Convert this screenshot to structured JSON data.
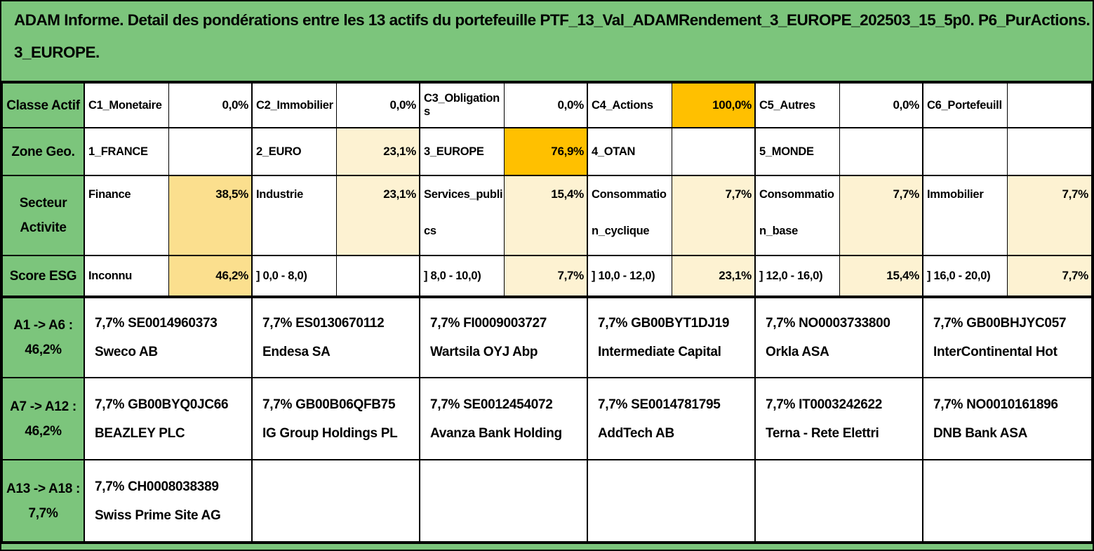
{
  "title": {
    "line1": "ADAM Informe. Detail des pondérations entre les 13 actifs du portefeuille PTF_13_Val_ADAMRendement_3_EUROPE_202503_15_5p0. P6_PurActions.",
    "line2": "3_EUROPE."
  },
  "colors": {
    "background_green": "#7CC57C",
    "highlight_orange": "#FFC000",
    "highlight_gold": "#FBDF8E",
    "highlight_cream": "#FDF2D2",
    "cell_white": "#FFFFFF",
    "border": "#000000"
  },
  "attribute_rows": [
    {
      "label_line1": "Classe Actif",
      "label_line2": "",
      "cells": [
        {
          "name": "C1_Monetaire",
          "value": "0,0%",
          "fill": "white"
        },
        {
          "name": "C2_Immobilier",
          "value": "0,0%",
          "fill": "white"
        },
        {
          "name": "C3_Obligations",
          "value": "0,0%",
          "fill": "white"
        },
        {
          "name": "C4_Actions",
          "value": "100,0%",
          "fill": "orange"
        },
        {
          "name": "C5_Autres",
          "value": "0,0%",
          "fill": "white"
        },
        {
          "name": "C6_Portefeuill",
          "value": "",
          "fill": "white"
        }
      ]
    },
    {
      "label_line1": "Zone Geo.",
      "label_line2": "",
      "cells": [
        {
          "name": "1_FRANCE",
          "value": "",
          "fill": "white"
        },
        {
          "name": "2_EURO",
          "value": "23,1%",
          "fill": "cream"
        },
        {
          "name": "3_EUROPE",
          "value": "76,9%",
          "fill": "orange"
        },
        {
          "name": "4_OTAN",
          "value": "",
          "fill": "white"
        },
        {
          "name": "5_MONDE",
          "value": "",
          "fill": "white"
        },
        {
          "name": "",
          "value": "",
          "fill": "white"
        }
      ]
    },
    {
      "label_line1": "Secteur",
      "label_line2": "Activite",
      "cells": [
        {
          "name": "Finance",
          "value": "38,5%",
          "fill": "gold"
        },
        {
          "name": "Industrie",
          "value": "23,1%",
          "fill": "cream"
        },
        {
          "name": "Services_publics",
          "value": "15,4%",
          "fill": "cream"
        },
        {
          "name": "Consommation_cyclique",
          "value": "7,7%",
          "fill": "cream"
        },
        {
          "name": "Consommation_base",
          "value": "7,7%",
          "fill": "cream"
        },
        {
          "name": "Immobilier",
          "value": "7,7%",
          "fill": "cream"
        }
      ]
    },
    {
      "label_line1": "Score ESG",
      "label_line2": "",
      "cells": [
        {
          "name": "Inconnu",
          "value": "46,2%",
          "fill": "gold"
        },
        {
          "name": "] 0,0 - 8,0)",
          "value": "",
          "fill": "white"
        },
        {
          "name": "] 8,0 - 10,0)",
          "value": "7,7%",
          "fill": "cream"
        },
        {
          "name": "] 10,0 - 12,0)",
          "value": "23,1%",
          "fill": "cream"
        },
        {
          "name": "] 12,0 - 16,0)",
          "value": "15,4%",
          "fill": "cream"
        },
        {
          "name": "] 16,0 - 20,0)",
          "value": "7,7%",
          "fill": "cream"
        }
      ]
    }
  ],
  "holding_rows": [
    {
      "label_line1": "A1 -> A6 :",
      "label_line2": "46,2%",
      "cells": [
        {
          "line1": "7,7% SE0014960373",
          "line2": "Sweco AB"
        },
        {
          "line1": "7,7% ES0130670112",
          "line2": "Endesa SA"
        },
        {
          "line1": "7,7% FI0009003727",
          "line2": "Wartsila OYJ Abp"
        },
        {
          "line1": "7,7% GB00BYT1DJ19",
          "line2": "Intermediate Capital"
        },
        {
          "line1": "7,7% NO0003733800",
          "line2": "Orkla ASA"
        },
        {
          "line1": "7,7% GB00BHJYC057",
          "line2": "InterContinental Hot"
        }
      ]
    },
    {
      "label_line1": "A7 -> A12 :",
      "label_line2": "46,2%",
      "cells": [
        {
          "line1": "7,7% GB00BYQ0JC66",
          "line2": "BEAZLEY PLC"
        },
        {
          "line1": "7,7% GB00B06QFB75",
          "line2": "IG Group Holdings PL"
        },
        {
          "line1": "7,7% SE0012454072",
          "line2": "Avanza Bank Holding"
        },
        {
          "line1": "7,7% SE0014781795",
          "line2": "AddTech AB"
        },
        {
          "line1": "7,7% IT0003242622",
          "line2": "Terna - Rete Elettri"
        },
        {
          "line1": "7,7% NO0010161896",
          "line2": "DNB Bank ASA"
        }
      ]
    },
    {
      "label_line1": "A13 -> A18 :",
      "label_line2": "7,7%",
      "cells": [
        {
          "line1": "7,7% CH0008038389",
          "line2": "Swiss Prime Site AG"
        },
        {
          "line1": "",
          "line2": ""
        },
        {
          "line1": "",
          "line2": ""
        },
        {
          "line1": "",
          "line2": ""
        },
        {
          "line1": "",
          "line2": ""
        },
        {
          "line1": "",
          "line2": ""
        }
      ]
    }
  ]
}
